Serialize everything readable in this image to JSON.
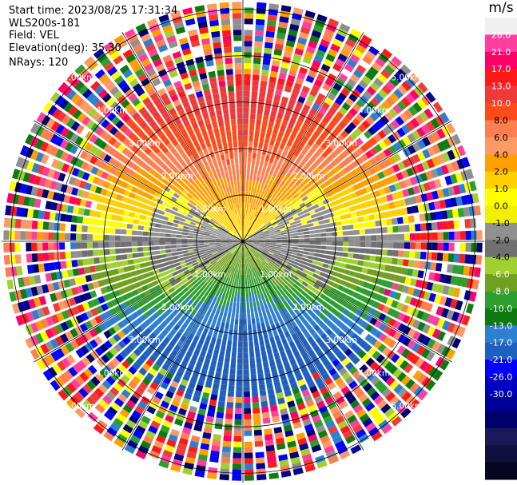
{
  "info": {
    "start_time": "Start time: 2023/08/25 17:31:34",
    "site": "WLS200s-181",
    "field": "Field: VEL",
    "elevation": "Elevation(deg): 35.30",
    "nrays": "NRays: 120"
  },
  "colorbar": {
    "unit": "m/s",
    "ticks": [
      "26.0",
      "21.0",
      "17.0",
      "13.0",
      "10.0",
      "8.0",
      "6.0",
      "4.0",
      "2.0",
      "1.0",
      "0.0",
      "-1.0",
      "-2.0",
      "-4.0",
      "-6.0",
      "-8.0",
      "-10.0",
      "-13.0",
      "-17.0",
      "-21.0",
      "-26.0",
      "-30.0"
    ],
    "colors": [
      "#f0f0f0",
      "#ff3fa0",
      "#ff0066",
      "#ff1a1a",
      "#f03a3a",
      "#ff4a1a",
      "#ff7f50",
      "#ff9966",
      "#ffa000",
      "#ffd000",
      "#ffff00",
      "#f0f000",
      "#909090",
      "#707070",
      "#a0d030",
      "#70a020",
      "#2e9e2e",
      "#0f7a0f",
      "#2e7fd0",
      "#1f5fc0",
      "#0000ff",
      "#0000c0",
      "#000099",
      "#00006b",
      "#1a1a5a",
      "#101040",
      "#060620"
    ],
    "tick_colors": [
      "#ffffff",
      "#ffffff",
      "#ffffff",
      "#ffffff",
      "#ffffff",
      "#000000",
      "#000000",
      "#000000",
      "#000000",
      "#000000",
      "#000000",
      "#000000",
      "#000000",
      "#000000",
      "#ffffff",
      "#ffffff",
      "#ffffff",
      "#ffffff",
      "#ffffff",
      "#ffffff",
      "#ffffff",
      "#ffffff"
    ]
  },
  "chart_data": {
    "type": "heatmap",
    "projection": "polar PPI",
    "field": "VEL",
    "units": "m/s",
    "elevation_deg": 35.3,
    "nrays": 120,
    "range_rings_km": [
      1.0,
      2.0,
      3.0,
      4.0,
      5.0
    ],
    "range_ring_labels": [
      "1.00km",
      "2.00km",
      "3.00km",
      "4.00km",
      "5.00km"
    ],
    "spokes_deg": [
      0,
      30,
      60,
      90,
      120,
      150,
      180,
      210,
      240,
      270,
      300,
      330
    ],
    "max_range_km": 5.2,
    "reliable_range_km": 3.6,
    "velocity_pattern": {
      "description": "Radial velocity field: positive (orange/red) toward the north, negative (green/blue) toward the south; noisy multicolor beyond ~3.6 km",
      "peak_positive_ms": 14,
      "peak_negative_ms": -10,
      "dominant_direction_deg": 0
    },
    "colorbar_ticks": [
      26.0,
      21.0,
      17.0,
      13.0,
      10.0,
      8.0,
      6.0,
      4.0,
      2.0,
      1.0,
      0.0,
      -1.0,
      -2.0,
      -4.0,
      -6.0,
      -8.0,
      -10.0,
      -13.0,
      -17.0,
      -21.0,
      -26.0,
      -30.0
    ]
  }
}
